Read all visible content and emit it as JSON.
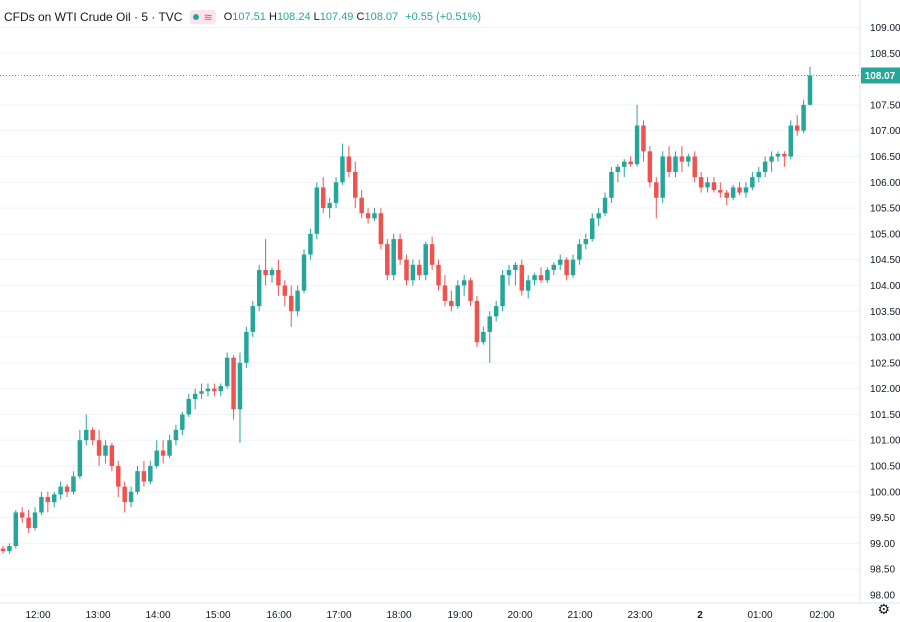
{
  "header": {
    "symbol_title": "CFDs on WTI Crude Oil · 5 · TVC",
    "ohlc": {
      "open_label": "O",
      "open": "107.51",
      "high_label": "H",
      "high": "108.24",
      "low_label": "L",
      "low": "107.49",
      "close_label": "C",
      "close": "108.07",
      "change": "+0.55 (+0.51%)"
    },
    "wave_icon": "≋"
  },
  "colors": {
    "up": "#26a69a",
    "down": "#ef5350",
    "price_label_bg": "#26a69a"
  },
  "chart_data": {
    "type": "candlestick",
    "ylim": [
      97.85,
      109.25
    ],
    "y_ticks": [
      "109.00",
      "108.50",
      "108.00",
      "107.50",
      "107.00",
      "106.50",
      "106.00",
      "105.50",
      "105.00",
      "104.50",
      "104.00",
      "103.50",
      "103.00",
      "102.50",
      "102.00",
      "101.50",
      "101.00",
      "100.50",
      "100.00",
      "99.50",
      "99.00",
      "98.50",
      "98.00"
    ],
    "x_ticks": [
      "12:00",
      "13:00",
      "14:00",
      "15:00",
      "16:00",
      "17:00",
      "18:00",
      "19:00",
      "20:00",
      "21:00",
      "23:00",
      "2",
      "01:00",
      "02:00"
    ],
    "last_price": "108.07",
    "candles": [
      [
        98.9,
        98.95,
        98.8,
        98.85
      ],
      [
        98.85,
        99.0,
        98.8,
        98.95
      ],
      [
        98.95,
        99.65,
        98.9,
        99.6
      ],
      [
        99.6,
        99.7,
        99.4,
        99.5
      ],
      [
        99.5,
        99.65,
        99.2,
        99.3
      ],
      [
        99.3,
        99.7,
        99.25,
        99.6
      ],
      [
        99.6,
        100.0,
        99.55,
        99.9
      ],
      [
        99.9,
        100.0,
        99.6,
        99.8
      ],
      [
        99.8,
        100.0,
        99.7,
        99.95
      ],
      [
        99.95,
        100.2,
        99.85,
        100.1
      ],
      [
        100.1,
        100.15,
        99.9,
        100.0
      ],
      [
        100.0,
        100.4,
        99.95,
        100.3
      ],
      [
        100.3,
        101.2,
        100.25,
        101.0
      ],
      [
        101.0,
        101.5,
        100.9,
        101.2
      ],
      [
        101.2,
        101.25,
        100.9,
        101.0
      ],
      [
        101.0,
        101.2,
        100.5,
        100.7
      ],
      [
        100.7,
        101.0,
        100.55,
        100.9
      ],
      [
        100.9,
        100.95,
        100.4,
        100.5
      ],
      [
        100.5,
        100.6,
        99.9,
        100.1
      ],
      [
        100.1,
        100.2,
        99.6,
        99.8
      ],
      [
        99.8,
        100.1,
        99.7,
        100.0
      ],
      [
        100.0,
        100.5,
        99.95,
        100.4
      ],
      [
        100.4,
        100.6,
        100.1,
        100.2
      ],
      [
        100.2,
        100.6,
        100.15,
        100.5
      ],
      [
        100.5,
        101.0,
        100.45,
        100.8
      ],
      [
        100.8,
        101.0,
        100.55,
        100.7
      ],
      [
        100.7,
        101.1,
        100.65,
        101.0
      ],
      [
        101.0,
        101.3,
        100.9,
        101.2
      ],
      [
        101.2,
        101.55,
        101.1,
        101.5
      ],
      [
        101.5,
        101.9,
        101.45,
        101.8
      ],
      [
        101.8,
        102.0,
        101.6,
        101.9
      ],
      [
        101.9,
        102.1,
        101.8,
        101.95
      ],
      [
        101.95,
        102.1,
        101.85,
        102.0
      ],
      [
        102.0,
        102.1,
        101.85,
        101.95
      ],
      [
        101.95,
        102.1,
        101.85,
        102.05
      ],
      [
        102.05,
        102.7,
        102.0,
        102.6
      ],
      [
        102.6,
        102.65,
        101.4,
        101.6
      ],
      [
        101.6,
        102.7,
        100.95,
        102.5
      ],
      [
        102.5,
        103.2,
        102.4,
        103.1
      ],
      [
        103.1,
        103.7,
        103.0,
        103.6
      ],
      [
        103.6,
        104.4,
        103.5,
        104.3
      ],
      [
        104.3,
        104.9,
        104.0,
        104.2
      ],
      [
        104.2,
        104.35,
        104.05,
        104.3
      ],
      [
        104.3,
        104.5,
        103.8,
        104.0
      ],
      [
        104.0,
        104.1,
        103.6,
        103.8
      ],
      [
        103.8,
        104.0,
        103.2,
        103.5
      ],
      [
        103.5,
        104.0,
        103.4,
        103.9
      ],
      [
        103.9,
        104.7,
        103.85,
        104.6
      ],
      [
        104.6,
        105.1,
        104.5,
        105.0
      ],
      [
        105.0,
        106.0,
        104.9,
        105.9
      ],
      [
        105.9,
        106.1,
        105.4,
        105.5
      ],
      [
        105.5,
        105.7,
        105.3,
        105.6
      ],
      [
        105.6,
        106.1,
        105.5,
        106.0
      ],
      [
        106.0,
        106.75,
        105.95,
        106.5
      ],
      [
        106.5,
        106.7,
        106.1,
        106.2
      ],
      [
        106.2,
        106.4,
        105.5,
        105.7
      ],
      [
        105.7,
        105.85,
        105.3,
        105.4
      ],
      [
        105.4,
        105.5,
        105.2,
        105.3
      ],
      [
        105.3,
        105.5,
        105.25,
        105.4
      ],
      [
        105.4,
        105.5,
        104.7,
        104.8
      ],
      [
        104.8,
        104.9,
        104.1,
        104.2
      ],
      [
        104.2,
        105.0,
        104.1,
        104.9
      ],
      [
        104.9,
        105.0,
        104.4,
        104.5
      ],
      [
        104.5,
        104.6,
        104.0,
        104.1
      ],
      [
        104.1,
        104.5,
        104.0,
        104.4
      ],
      [
        104.4,
        104.5,
        104.1,
        104.2
      ],
      [
        104.2,
        104.85,
        104.1,
        104.8
      ],
      [
        104.8,
        104.95,
        104.3,
        104.4
      ],
      [
        104.4,
        104.5,
        103.9,
        104.0
      ],
      [
        104.0,
        104.2,
        103.6,
        103.7
      ],
      [
        103.7,
        103.9,
        103.5,
        103.6
      ],
      [
        103.6,
        104.1,
        103.55,
        104.0
      ],
      [
        104.0,
        104.2,
        103.8,
        104.1
      ],
      [
        104.1,
        104.15,
        103.6,
        103.7
      ],
      [
        103.7,
        103.8,
        102.8,
        102.9
      ],
      [
        102.9,
        103.2,
        102.85,
        103.1
      ],
      [
        103.1,
        103.5,
        102.5,
        103.4
      ],
      [
        103.4,
        103.7,
        103.3,
        103.6
      ],
      [
        103.6,
        104.3,
        103.5,
        104.2
      ],
      [
        104.2,
        104.4,
        104.0,
        104.3
      ],
      [
        104.3,
        104.45,
        104.0,
        104.4
      ],
      [
        104.4,
        104.5,
        103.8,
        103.9
      ],
      [
        103.9,
        104.2,
        103.75,
        104.1
      ],
      [
        104.1,
        104.25,
        104.0,
        104.2
      ],
      [
        104.2,
        104.35,
        104.05,
        104.1
      ],
      [
        104.1,
        104.35,
        104.05,
        104.3
      ],
      [
        104.3,
        104.45,
        104.2,
        104.4
      ],
      [
        104.4,
        104.6,
        104.3,
        104.5
      ],
      [
        104.5,
        104.55,
        104.1,
        104.2
      ],
      [
        104.2,
        104.6,
        104.15,
        104.5
      ],
      [
        104.5,
        104.9,
        104.4,
        104.8
      ],
      [
        104.8,
        105.0,
        104.7,
        104.9
      ],
      [
        104.9,
        105.4,
        104.85,
        105.3
      ],
      [
        105.3,
        105.5,
        105.15,
        105.4
      ],
      [
        105.4,
        105.8,
        105.35,
        105.7
      ],
      [
        105.7,
        106.3,
        105.6,
        106.2
      ],
      [
        106.2,
        106.35,
        106.0,
        106.3
      ],
      [
        106.3,
        106.45,
        106.1,
        106.4
      ],
      [
        106.4,
        106.5,
        106.3,
        106.35
      ],
      [
        106.35,
        107.5,
        106.3,
        107.1
      ],
      [
        107.1,
        107.2,
        106.4,
        106.6
      ],
      [
        106.6,
        106.7,
        105.9,
        106.0
      ],
      [
        106.0,
        106.1,
        105.3,
        105.7
      ],
      [
        105.7,
        106.6,
        105.6,
        106.5
      ],
      [
        106.5,
        106.7,
        106.1,
        106.2
      ],
      [
        106.2,
        106.6,
        106.1,
        106.5
      ],
      [
        106.5,
        106.7,
        106.2,
        106.4
      ],
      [
        106.4,
        106.55,
        106.3,
        106.5
      ],
      [
        106.5,
        106.6,
        106.0,
        106.1
      ],
      [
        106.1,
        106.2,
        105.8,
        105.9
      ],
      [
        105.9,
        106.1,
        105.8,
        106.0
      ],
      [
        106.0,
        106.1,
        105.8,
        105.85
      ],
      [
        105.85,
        106.0,
        105.7,
        105.8
      ],
      [
        105.8,
        105.85,
        105.55,
        105.7
      ],
      [
        105.7,
        105.95,
        105.65,
        105.9
      ],
      [
        105.9,
        106.0,
        105.75,
        105.8
      ],
      [
        105.8,
        106.0,
        105.7,
        105.9
      ],
      [
        105.9,
        106.2,
        105.85,
        106.1
      ],
      [
        106.1,
        106.3,
        106.0,
        106.2
      ],
      [
        106.2,
        106.5,
        106.1,
        106.4
      ],
      [
        106.4,
        106.6,
        106.2,
        106.5
      ],
      [
        106.5,
        106.6,
        106.4,
        106.55
      ],
      [
        106.55,
        106.6,
        106.3,
        106.5
      ],
      [
        106.5,
        107.2,
        106.45,
        107.1
      ],
      [
        107.1,
        107.3,
        106.9,
        107.0
      ],
      [
        107.0,
        107.6,
        106.95,
        107.5
      ],
      [
        107.5,
        108.24,
        107.49,
        108.07
      ]
    ]
  }
}
